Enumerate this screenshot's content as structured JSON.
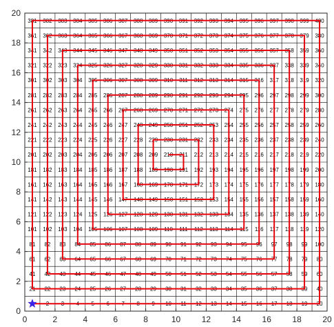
{
  "chart_data": {
    "type": "line",
    "title": "",
    "xlabel": "",
    "ylabel": "",
    "xlim": [
      0,
      20
    ],
    "ylim": [
      0,
      20
    ],
    "xticks": [
      0,
      2,
      4,
      6,
      8,
      10,
      12,
      14,
      16,
      18,
      20
    ],
    "yticks": [
      0,
      2,
      4,
      6,
      8,
      10,
      12,
      14,
      16,
      18,
      20
    ],
    "grid": {
      "on": true,
      "spacing": 1
    },
    "cell_labels": {
      "rows": 20,
      "cols": 20,
      "start": 1,
      "end": 400,
      "order": "row-major from bottom-left",
      "cell_center_offset": 0.5
    },
    "series": [
      {
        "color": "#e8000b",
        "line_width": 2,
        "points": [
          [
            0.5,
            0.5
          ],
          [
            19.5,
            0.5
          ],
          [
            19.5,
            19.5
          ],
          [
            0.5,
            19.5
          ],
          [
            0.5,
            1.5
          ],
          [
            18.5,
            1.5
          ],
          [
            18.5,
            18.5
          ],
          [
            1.5,
            18.5
          ],
          [
            1.5,
            2.5
          ],
          [
            17.5,
            2.5
          ],
          [
            17.5,
            17.5
          ],
          [
            2.5,
            17.5
          ],
          [
            2.5,
            3.5
          ],
          [
            16.5,
            3.5
          ],
          [
            16.5,
            16.5
          ],
          [
            3.5,
            16.5
          ],
          [
            3.5,
            4.5
          ],
          [
            15.5,
            4.5
          ],
          [
            15.5,
            15.5
          ],
          [
            4.5,
            15.5
          ],
          [
            4.5,
            5.5
          ],
          [
            14.5,
            5.5
          ],
          [
            14.5,
            14.5
          ],
          [
            5.5,
            14.5
          ],
          [
            5.5,
            6.5
          ],
          [
            13.5,
            6.5
          ],
          [
            13.5,
            13.5
          ],
          [
            6.5,
            13.5
          ],
          [
            6.5,
            7.5
          ],
          [
            12.5,
            7.5
          ],
          [
            12.5,
            12.5
          ],
          [
            7.5,
            12.5
          ],
          [
            7.5,
            8.5
          ],
          [
            11.5,
            8.5
          ],
          [
            11.5,
            11.5
          ],
          [
            8.5,
            11.5
          ],
          [
            8.5,
            9.5
          ],
          [
            10.5,
            9.5
          ],
          [
            10.5,
            10.5
          ],
          [
            9.5,
            10.5
          ]
        ]
      }
    ],
    "start_marker": {
      "symbol": "star",
      "x": 0.5,
      "y": 0.5,
      "color": "#3a22e6"
    }
  },
  "colors": {
    "grid": "#000000",
    "axis": "#262626",
    "path": "#e8000b",
    "marker": "#3a22e6",
    "background": "#ffffff"
  }
}
